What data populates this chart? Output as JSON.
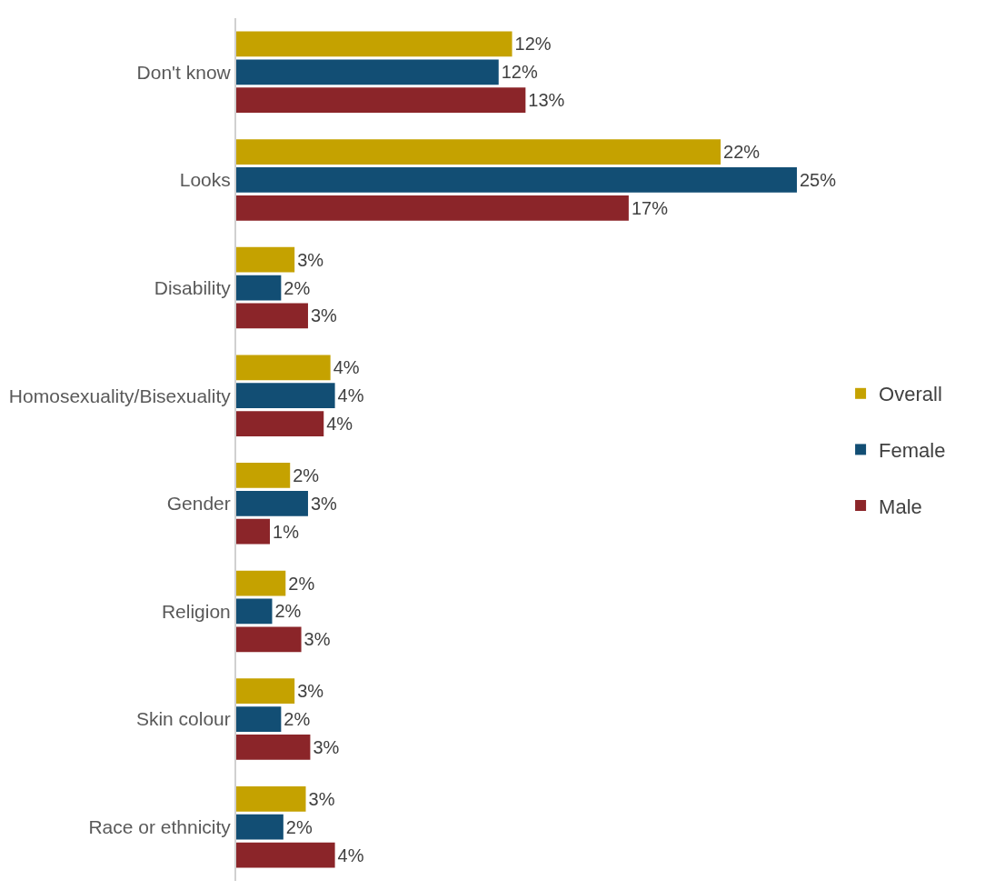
{
  "chart_data": {
    "type": "bar",
    "orientation": "horizontal",
    "categories": [
      "Don't know",
      "Looks",
      "Disability",
      "Homosexuality/Bisexuality",
      "Gender",
      "Religion",
      "Skin colour",
      "Race or ethnicity"
    ],
    "series": [
      {
        "name": "Overall",
        "color": "#c5a200",
        "values": [
          12.3,
          21.6,
          2.6,
          4.2,
          2.4,
          2.2,
          2.6,
          3.1
        ],
        "value_labels": [
          "12%",
          "22%",
          "3%",
          "4%",
          "2%",
          "2%",
          "3%",
          "3%"
        ]
      },
      {
        "name": "Female",
        "color": "#124e74",
        "values": [
          11.7,
          25.0,
          2.0,
          4.4,
          3.2,
          1.6,
          2.0,
          2.1
        ],
        "value_labels": [
          "12%",
          "25%",
          "2%",
          "4%",
          "3%",
          "2%",
          "2%",
          "2%"
        ]
      },
      {
        "name": "Male",
        "color": "#8b2529",
        "values": [
          12.9,
          17.5,
          3.2,
          3.9,
          1.5,
          2.9,
          3.3,
          4.4
        ],
        "value_labels": [
          "13%",
          "17%",
          "3%",
          "4%",
          "1%",
          "3%",
          "3%",
          "4%"
        ]
      }
    ],
    "legend": "right"
  }
}
